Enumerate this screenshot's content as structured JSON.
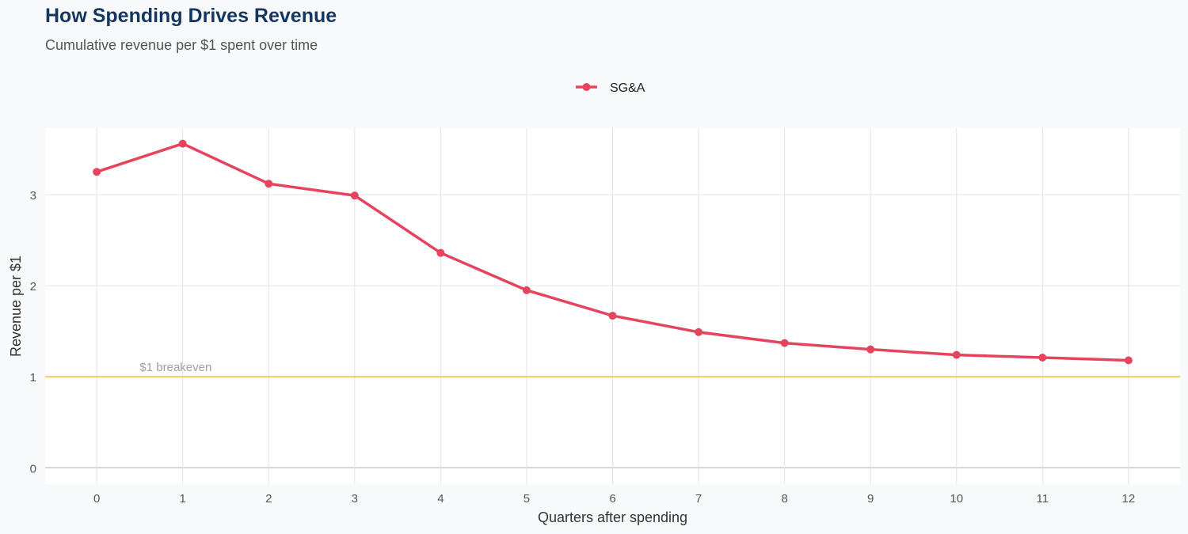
{
  "chart_data": {
    "type": "line",
    "title": "How Spending Drives Revenue",
    "subtitle": "Cumulative revenue per $1 spent over time",
    "xlabel": "Quarters after spending",
    "ylabel": "Revenue per $1",
    "x": [
      0,
      1,
      2,
      3,
      4,
      5,
      6,
      7,
      8,
      9,
      10,
      11,
      12
    ],
    "series": [
      {
        "name": "SG&A",
        "color": "#e5445f",
        "values": [
          3.25,
          3.56,
          3.12,
          2.99,
          2.36,
          1.95,
          1.67,
          1.49,
          1.37,
          1.3,
          1.24,
          1.21,
          1.18
        ]
      }
    ],
    "reference_line": {
      "y": 1,
      "label": "$1 breakeven",
      "color": "#f5c65a"
    },
    "xticks": [
      "0",
      "1",
      "2",
      "3",
      "4",
      "5",
      "6",
      "7",
      "8",
      "9",
      "10",
      "11",
      "12"
    ],
    "yticks": [
      "0",
      "1",
      "2",
      "3"
    ],
    "xlim": [
      -0.6,
      12.6
    ],
    "ylim": [
      -0.18,
      3.73
    ],
    "grid": true,
    "legend": "top-center"
  }
}
